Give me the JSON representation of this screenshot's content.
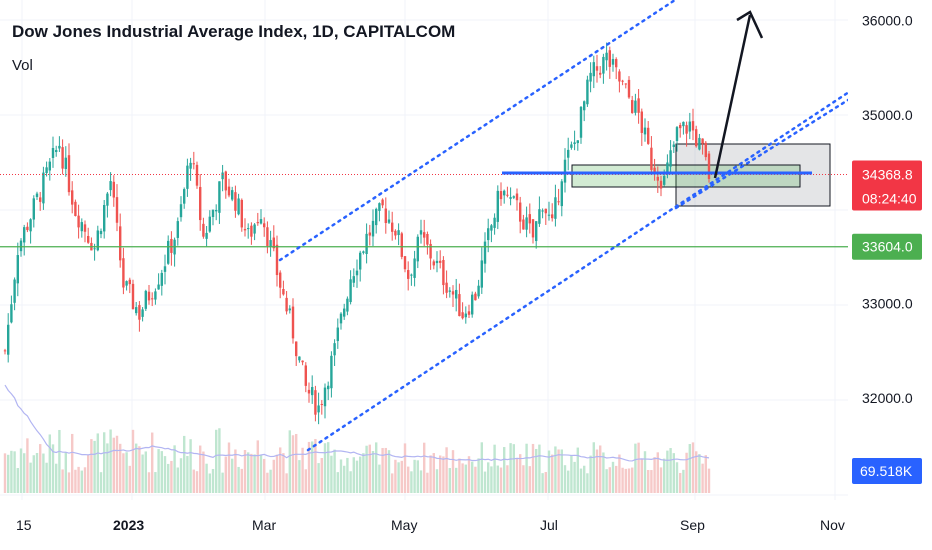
{
  "header": {
    "title": "Dow Jones Industrial Average Index, 1D, CAPITALCOM",
    "vol_label": "Vol"
  },
  "colors": {
    "up": "#26a69a",
    "down": "#ef5350",
    "channel": "#2962ff",
    "support": "#4caf50",
    "price_marker": "#f23645",
    "vol_marker": "#2962ff",
    "volume_ma": "#b2b5f2"
  },
  "chart_data": {
    "type": "candlestick",
    "title": "Dow Jones Industrial Average Index, 1D, CAPITALCOM",
    "x_tick_labels": [
      "15",
      "2023",
      "Mar",
      "May",
      "Jul",
      "Sep",
      "Nov"
    ],
    "y_tick_labels": [
      "36000.0",
      "35000.0",
      "33000.0",
      "32000.0"
    ],
    "y_range": [
      31500,
      36400
    ],
    "price_anchors": [
      {
        "t": 0,
        "p": 32500
      },
      {
        "t": 4,
        "p": 33600
      },
      {
        "t": 10,
        "p": 34100
      },
      {
        "t": 17,
        "p": 34700
      },
      {
        "t": 22,
        "p": 34000
      },
      {
        "t": 28,
        "p": 33600
      },
      {
        "t": 33,
        "p": 34300
      },
      {
        "t": 37,
        "p": 33200
      },
      {
        "t": 42,
        "p": 32900
      },
      {
        "t": 48,
        "p": 33300
      },
      {
        "t": 54,
        "p": 33800
      },
      {
        "t": 58,
        "p": 34600
      },
      {
        "t": 62,
        "p": 33700
      },
      {
        "t": 68,
        "p": 34300
      },
      {
        "t": 72,
        "p": 34100
      },
      {
        "t": 76,
        "p": 33700
      },
      {
        "t": 80,
        "p": 34000
      },
      {
        "t": 86,
        "p": 33200
      },
      {
        "t": 90,
        "p": 32700
      },
      {
        "t": 94,
        "p": 32100
      },
      {
        "t": 98,
        "p": 31900
      },
      {
        "t": 103,
        "p": 32500
      },
      {
        "t": 108,
        "p": 33300
      },
      {
        "t": 113,
        "p": 33700
      },
      {
        "t": 118,
        "p": 34000
      },
      {
        "t": 122,
        "p": 33800
      },
      {
        "t": 126,
        "p": 33300
      },
      {
        "t": 130,
        "p": 33700
      },
      {
        "t": 135,
        "p": 33400
      },
      {
        "t": 140,
        "p": 33100
      },
      {
        "t": 143,
        "p": 32900
      },
      {
        "t": 147,
        "p": 33100
      },
      {
        "t": 151,
        "p": 33700
      },
      {
        "t": 155,
        "p": 34200
      },
      {
        "t": 160,
        "p": 34000
      },
      {
        "t": 165,
        "p": 33700
      },
      {
        "t": 168,
        "p": 34100
      },
      {
        "t": 171,
        "p": 33800
      },
      {
        "t": 174,
        "p": 34400
      },
      {
        "t": 178,
        "p": 34700
      },
      {
        "t": 183,
        "p": 35400
      },
      {
        "t": 188,
        "p": 35600
      },
      {
        "t": 193,
        "p": 35300
      },
      {
        "t": 198,
        "p": 35000
      },
      {
        "t": 202,
        "p": 34500
      },
      {
        "t": 206,
        "p": 34300
      },
      {
        "t": 210,
        "p": 34800
      },
      {
        "t": 214,
        "p": 34900
      },
      {
        "t": 218,
        "p": 34600
      },
      {
        "t": 220,
        "p": 34368.8
      }
    ],
    "current_price": 34368.8,
    "current_price_label": "34368.8",
    "countdown_label": "08:24:40",
    "support_level": 33604,
    "support_label": "33604.0",
    "volume_label": "69.518K",
    "drawings": {
      "channel_lines": "upward parallel channel (dotted blue), three lines",
      "horizontal_ray": "blue horizontal line near 34370",
      "zones": [
        "grey rectangle",
        "green rectangle"
      ],
      "arrow": "black arrow pointing up toward 36200"
    },
    "grid": true,
    "legend": "none"
  }
}
